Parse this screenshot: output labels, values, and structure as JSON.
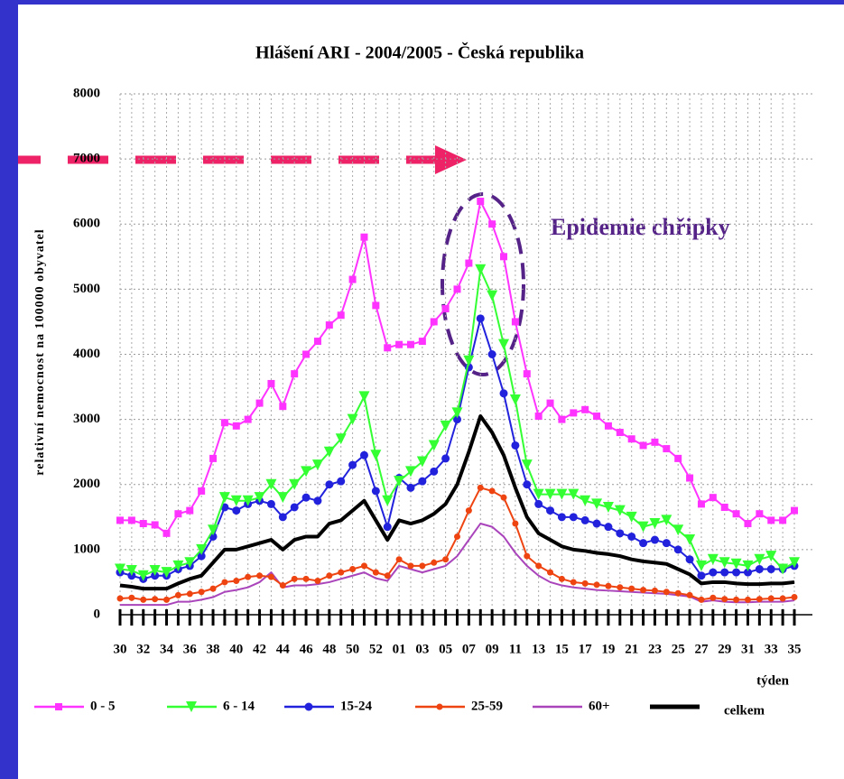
{
  "chart_data": {
    "type": "line",
    "title": "Hlášení ARI - 2004/2005 - Česká republika",
    "y_label": "relativní nemocnost na 100000 obyvatel",
    "x_label": "týden",
    "annotation": "Epidemie chřipky",
    "categories": [
      "30",
      null,
      "32",
      null,
      "34",
      null,
      "36",
      null,
      "38",
      null,
      "40",
      null,
      "42",
      null,
      "44",
      null,
      "46",
      null,
      "48",
      null,
      "50",
      null,
      "52",
      null,
      "01",
      null,
      "03",
      null,
      "05",
      null,
      "07",
      null,
      "09",
      null,
      "11",
      null,
      "13",
      null,
      "15",
      null,
      "17",
      null,
      "19",
      null,
      "21",
      null,
      "23",
      null,
      "25",
      null,
      "27",
      null,
      "29",
      null,
      "31",
      null,
      "33",
      null,
      "35"
    ],
    "ylim": [
      0,
      8000
    ],
    "yticks": [
      0,
      1000,
      2000,
      3000,
      4000,
      5000,
      6000,
      7000,
      8000
    ],
    "grid": true,
    "series": [
      {
        "name": "0 - 5",
        "color": "#ff33ff",
        "marker": "square",
        "values": [
          1450,
          1450,
          1400,
          1380,
          1250,
          1550,
          1600,
          1900,
          2400,
          2950,
          2900,
          3000,
          3250,
          3550,
          3200,
          3700,
          4000,
          4200,
          4450,
          4600,
          5150,
          5800,
          4750,
          4100,
          4150,
          4150,
          4200,
          4500,
          4700,
          5000,
          5400,
          6350,
          6000,
          5500,
          4500,
          3700,
          3050,
          3250,
          3000,
          3100,
          3150,
          3050,
          2900,
          2800,
          2700,
          2600,
          2650,
          2550,
          2400,
          2100,
          1700,
          1800,
          1650,
          1550,
          1400,
          1550,
          1450,
          1450,
          1600
        ]
      },
      {
        "name": "6 - 14",
        "color": "#33ff33",
        "marker": "triangle",
        "values": [
          700,
          680,
          600,
          680,
          650,
          750,
          800,
          1000,
          1300,
          1800,
          1750,
          1750,
          1800,
          2000,
          1800,
          2000,
          2200,
          2300,
          2500,
          2700,
          3000,
          3350,
          2450,
          1750,
          2050,
          2200,
          2350,
          2600,
          2900,
          3100,
          3900,
          5300,
          4900,
          4150,
          3300,
          2300,
          1850,
          1850,
          1850,
          1850,
          1750,
          1700,
          1650,
          1600,
          1500,
          1350,
          1400,
          1450,
          1300,
          1150,
          750,
          850,
          800,
          780,
          750,
          850,
          900,
          700,
          800
        ]
      },
      {
        "name": "15-24",
        "color": "#2222dd",
        "marker": "circle",
        "values": [
          650,
          600,
          550,
          600,
          600,
          700,
          750,
          900,
          1200,
          1650,
          1600,
          1700,
          1750,
          1700,
          1500,
          1650,
          1800,
          1750,
          2000,
          2050,
          2300,
          2450,
          1900,
          1350,
          2100,
          1950,
          2050,
          2200,
          2400,
          3000,
          3800,
          4550,
          4000,
          3400,
          2600,
          2000,
          1700,
          1600,
          1500,
          1500,
          1450,
          1400,
          1350,
          1250,
          1200,
          1100,
          1150,
          1100,
          1000,
          850,
          600,
          650,
          650,
          650,
          650,
          700,
          700,
          700,
          750
        ]
      },
      {
        "name": "25-59",
        "color": "#ee4411",
        "marker": "dot",
        "values": [
          250,
          260,
          230,
          240,
          230,
          300,
          320,
          350,
          400,
          500,
          520,
          580,
          600,
          580,
          450,
          550,
          550,
          520,
          600,
          650,
          700,
          750,
          650,
          600,
          850,
          750,
          750,
          800,
          850,
          1200,
          1600,
          1950,
          1900,
          1800,
          1400,
          900,
          750,
          650,
          550,
          500,
          480,
          460,
          440,
          420,
          400,
          380,
          370,
          350,
          330,
          300,
          230,
          260,
          240,
          230,
          230,
          240,
          250,
          250,
          270
        ]
      },
      {
        "name": "60+",
        "color": "#aa44bb",
        "marker": "none",
        "values": [
          150,
          150,
          150,
          150,
          150,
          200,
          200,
          230,
          270,
          350,
          380,
          420,
          500,
          650,
          420,
          450,
          450,
          470,
          500,
          550,
          600,
          650,
          560,
          520,
          750,
          700,
          650,
          700,
          750,
          900,
          1150,
          1400,
          1350,
          1200,
          950,
          750,
          600,
          500,
          450,
          420,
          400,
          380,
          370,
          360,
          350,
          340,
          330,
          320,
          300,
          280,
          200,
          220,
          200,
          190,
          190,
          200,
          200,
          200,
          220
        ]
      },
      {
        "name": "celkem",
        "color": "#000000",
        "marker": "none",
        "width": 4,
        "values": [
          450,
          430,
          400,
          400,
          400,
          480,
          550,
          600,
          800,
          1000,
          1000,
          1050,
          1100,
          1150,
          1000,
          1150,
          1200,
          1200,
          1400,
          1450,
          1600,
          1750,
          1450,
          1150,
          1450,
          1400,
          1450,
          1550,
          1700,
          2000,
          2500,
          3050,
          2800,
          2450,
          1950,
          1500,
          1250,
          1150,
          1050,
          1000,
          980,
          950,
          930,
          900,
          850,
          820,
          800,
          780,
          700,
          620,
          480,
          500,
          500,
          480,
          470,
          470,
          480,
          480,
          500
        ]
      }
    ]
  }
}
